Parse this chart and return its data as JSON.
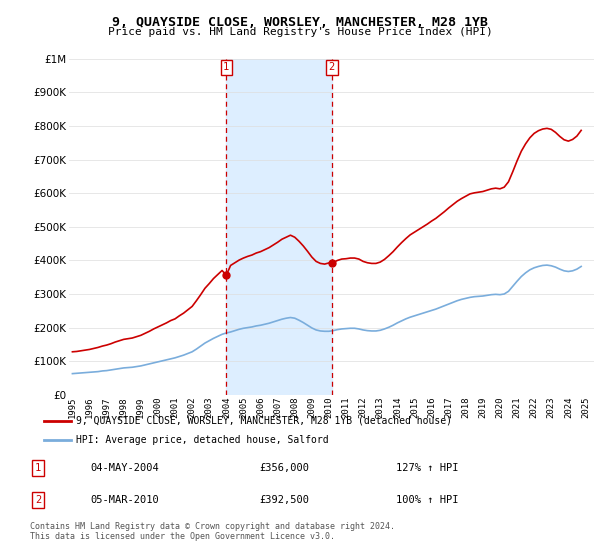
{
  "title": "9, QUAYSIDE CLOSE, WORSLEY, MANCHESTER, M28 1YB",
  "subtitle": "Price paid vs. HM Land Registry's House Price Index (HPI)",
  "legend_line1": "9, QUAYSIDE CLOSE, WORSLEY, MANCHESTER, M28 1YB (detached house)",
  "legend_line2": "HPI: Average price, detached house, Salford",
  "transaction1_date": "04-MAY-2004",
  "transaction1_price": 356000,
  "transaction1_hpi": "127% ↑ HPI",
  "transaction2_date": "05-MAR-2010",
  "transaction2_price": 392500,
  "transaction2_hpi": "100% ↑ HPI",
  "footnote": "Contains HM Land Registry data © Crown copyright and database right 2024.\nThis data is licensed under the Open Government Licence v3.0.",
  "hpi_color": "#7aaddc",
  "price_color": "#cc0000",
  "vline_color": "#cc0000",
  "shade_color": "#ddeeff",
  "ylim": [
    0,
    1000000
  ],
  "xlim_start": 1994.8,
  "xlim_end": 2025.5,
  "hpi_data_years": [
    1995.0,
    1995.25,
    1995.5,
    1995.75,
    1996.0,
    1996.25,
    1996.5,
    1996.75,
    1997.0,
    1997.25,
    1997.5,
    1997.75,
    1998.0,
    1998.25,
    1998.5,
    1998.75,
    1999.0,
    1999.25,
    1999.5,
    1999.75,
    2000.0,
    2000.25,
    2000.5,
    2000.75,
    2001.0,
    2001.25,
    2001.5,
    2001.75,
    2002.0,
    2002.25,
    2002.5,
    2002.75,
    2003.0,
    2003.25,
    2003.5,
    2003.75,
    2004.0,
    2004.25,
    2004.5,
    2004.75,
    2005.0,
    2005.25,
    2005.5,
    2005.75,
    2006.0,
    2006.25,
    2006.5,
    2006.75,
    2007.0,
    2007.25,
    2007.5,
    2007.75,
    2008.0,
    2008.25,
    2008.5,
    2008.75,
    2009.0,
    2009.25,
    2009.5,
    2009.75,
    2010.0,
    2010.25,
    2010.5,
    2010.75,
    2011.0,
    2011.25,
    2011.5,
    2011.75,
    2012.0,
    2012.25,
    2012.5,
    2012.75,
    2013.0,
    2013.25,
    2013.5,
    2013.75,
    2014.0,
    2014.25,
    2014.5,
    2014.75,
    2015.0,
    2015.25,
    2015.5,
    2015.75,
    2016.0,
    2016.25,
    2016.5,
    2016.75,
    2017.0,
    2017.25,
    2017.5,
    2017.75,
    2018.0,
    2018.25,
    2018.5,
    2018.75,
    2019.0,
    2019.25,
    2019.5,
    2019.75,
    2020.0,
    2020.25,
    2020.5,
    2020.75,
    2021.0,
    2021.25,
    2021.5,
    2021.75,
    2022.0,
    2022.25,
    2022.5,
    2022.75,
    2023.0,
    2023.25,
    2023.5,
    2023.75,
    2024.0,
    2024.25,
    2024.5,
    2024.75
  ],
  "hpi_data_vals": [
    63000,
    64000,
    65000,
    66000,
    67000,
    68000,
    69000,
    71000,
    72000,
    74000,
    76000,
    78000,
    80000,
    81000,
    82000,
    84000,
    86000,
    89000,
    92000,
    95000,
    98000,
    101000,
    104000,
    107000,
    110000,
    114000,
    118000,
    123000,
    128000,
    136000,
    145000,
    154000,
    161000,
    168000,
    174000,
    180000,
    184000,
    187000,
    191000,
    195000,
    198000,
    200000,
    202000,
    205000,
    207000,
    210000,
    213000,
    217000,
    221000,
    225000,
    228000,
    230000,
    228000,
    222000,
    215000,
    207000,
    199000,
    193000,
    190000,
    189000,
    189000,
    191000,
    194000,
    196000,
    197000,
    198000,
    198000,
    196000,
    193000,
    191000,
    190000,
    190000,
    192000,
    196000,
    201000,
    207000,
    214000,
    220000,
    226000,
    231000,
    235000,
    239000,
    243000,
    247000,
    251000,
    255000,
    260000,
    265000,
    270000,
    275000,
    280000,
    284000,
    287000,
    290000,
    292000,
    293000,
    294000,
    296000,
    298000,
    299000,
    298000,
    300000,
    308000,
    323000,
    338000,
    352000,
    363000,
    372000,
    378000,
    382000,
    385000,
    386000,
    384000,
    380000,
    374000,
    369000,
    367000,
    369000,
    374000,
    382000
  ],
  "red_data_years": [
    1995.0,
    1995.25,
    1995.5,
    1995.75,
    1996.0,
    1996.25,
    1996.5,
    1996.75,
    1997.0,
    1997.25,
    1997.5,
    1997.75,
    1998.0,
    1998.25,
    1998.5,
    1998.75,
    1999.0,
    1999.25,
    1999.5,
    1999.75,
    2000.0,
    2000.25,
    2000.5,
    2000.75,
    2001.0,
    2001.25,
    2001.5,
    2001.75,
    2002.0,
    2002.25,
    2002.5,
    2002.75,
    2003.0,
    2003.25,
    2003.5,
    2003.75,
    2004.0,
    2004.25,
    2004.5,
    2004.75,
    2005.0,
    2005.25,
    2005.5,
    2005.75,
    2006.0,
    2006.25,
    2006.5,
    2006.75,
    2007.0,
    2007.25,
    2007.5,
    2007.75,
    2008.0,
    2008.25,
    2008.5,
    2008.75,
    2009.0,
    2009.25,
    2009.5,
    2009.75,
    2010.0,
    2010.25,
    2010.5,
    2010.75,
    2011.0,
    2011.25,
    2011.5,
    2011.75,
    2012.0,
    2012.25,
    2012.5,
    2012.75,
    2013.0,
    2013.25,
    2013.5,
    2013.75,
    2014.0,
    2014.25,
    2014.5,
    2014.75,
    2015.0,
    2015.25,
    2015.5,
    2015.75,
    2016.0,
    2016.25,
    2016.5,
    2016.75,
    2017.0,
    2017.25,
    2017.5,
    2017.75,
    2018.0,
    2018.25,
    2018.5,
    2018.75,
    2019.0,
    2019.25,
    2019.5,
    2019.75,
    2020.0,
    2020.25,
    2020.5,
    2020.75,
    2021.0,
    2021.25,
    2021.5,
    2021.75,
    2022.0,
    2022.25,
    2022.5,
    2022.75,
    2023.0,
    2023.25,
    2023.5,
    2023.75,
    2024.0,
    2024.25,
    2024.5,
    2024.75
  ],
  "red_data_vals": [
    128000,
    129000,
    131000,
    133000,
    135000,
    138000,
    141000,
    145000,
    148000,
    152000,
    157000,
    161000,
    165000,
    167000,
    169000,
    173000,
    177000,
    183000,
    189000,
    196000,
    202000,
    208000,
    214000,
    221000,
    226000,
    235000,
    243000,
    253000,
    263000,
    280000,
    298000,
    317000,
    331000,
    346000,
    358000,
    370000,
    356000,
    385000,
    393000,
    401000,
    407000,
    412000,
    416000,
    422000,
    426000,
    432000,
    438000,
    446000,
    454000,
    463000,
    469000,
    475000,
    469000,
    457000,
    443000,
    427000,
    410000,
    397000,
    391000,
    389000,
    392500,
    394000,
    400000,
    404000,
    405000,
    407000,
    407000,
    404000,
    397000,
    393000,
    391000,
    391000,
    395000,
    403000,
    414000,
    426000,
    440000,
    453000,
    465000,
    476000,
    484000,
    492000,
    500000,
    508000,
    517000,
    525000,
    535000,
    545000,
    556000,
    566000,
    576000,
    584000,
    591000,
    598000,
    601000,
    603000,
    605000,
    609000,
    613000,
    615000,
    613000,
    618000,
    634000,
    664000,
    696000,
    725000,
    747000,
    765000,
    778000,
    786000,
    791000,
    793000,
    790000,
    781000,
    769000,
    759000,
    755000,
    760000,
    770000,
    787000
  ],
  "transaction1_year": 2004.0,
  "transaction2_year": 2010.17
}
